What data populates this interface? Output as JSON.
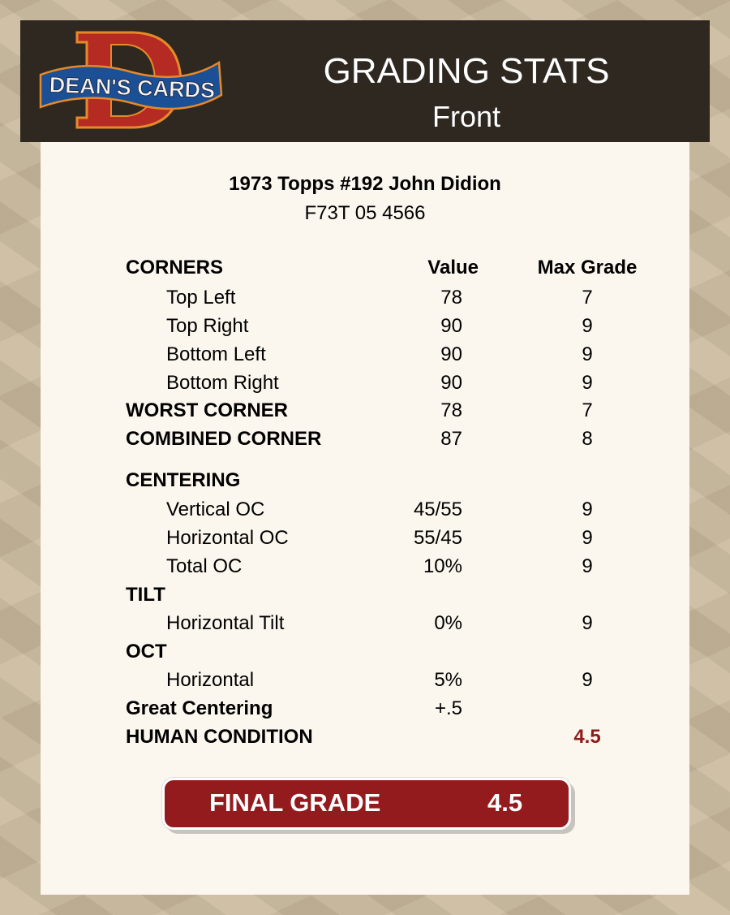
{
  "header": {
    "logo_text": "DEAN'S CARDS",
    "title": "GRADING STATS",
    "subtitle": "Front"
  },
  "card": {
    "name": "1973 Topps #192 John Didion",
    "cert": "F73T 05 4566"
  },
  "columns": {
    "value": "Value",
    "max": "Max Grade"
  },
  "rows": [
    {
      "label": "CORNERS",
      "bold": true,
      "value": "",
      "max": ""
    },
    {
      "label": "Top Left",
      "value": "78",
      "max": "7"
    },
    {
      "label": "Top Right",
      "value": "90",
      "max": "9"
    },
    {
      "label": "Bottom Left",
      "value": "90",
      "max": "9"
    },
    {
      "label": "Bottom Right",
      "value": "90",
      "max": "9"
    },
    {
      "label": "WORST CORNER",
      "bold": true,
      "value": "78",
      "max": "7"
    },
    {
      "label": "COMBINED CORNER",
      "bold": true,
      "value": "87",
      "max": "8"
    },
    {
      "label": "CENTERING",
      "bold": true,
      "value": "",
      "max": ""
    },
    {
      "label": "Vertical OC",
      "value": "45/55",
      "max": "9"
    },
    {
      "label": "Horizontal OC",
      "value": "55/45",
      "max": "9"
    },
    {
      "label": "Total OC",
      "value": "10%",
      "max": "9"
    },
    {
      "label": "TILT",
      "bold": true,
      "value": "",
      "max": ""
    },
    {
      "label": "Horizontal Tilt",
      "value": "0%",
      "max": "9"
    },
    {
      "label": "OCT",
      "bold": true,
      "value": "",
      "max": ""
    },
    {
      "label": "Horizontal",
      "value": "5%",
      "max": "9"
    },
    {
      "label": "Great Centering",
      "bold": true,
      "value": "+.5",
      "max": ""
    },
    {
      "label": "HUMAN CONDITION",
      "bold": true,
      "value": "",
      "max": "4.5",
      "max_color": "#8e1b1b"
    }
  ],
  "final": {
    "label": "FINAL GRADE",
    "value": "4.5",
    "color": "#931b1d"
  }
}
